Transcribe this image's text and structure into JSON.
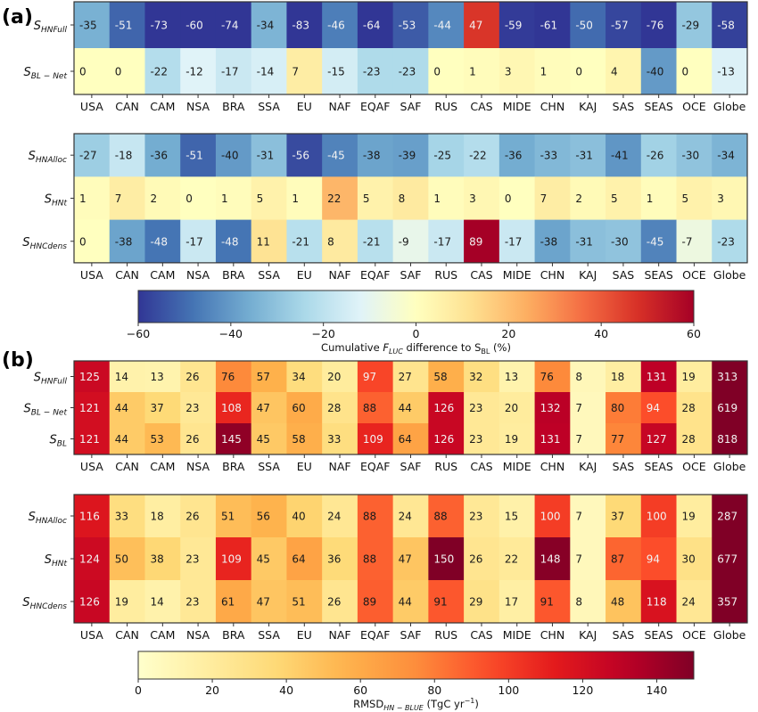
{
  "chart_data": [
    {
      "type": "heatmap",
      "panel": "(a)",
      "subplot": "top",
      "colormap": "RdYlBu_r",
      "vmin": -60,
      "vmax": 60,
      "categories": [
        "USA",
        "CAN",
        "CAM",
        "NSA",
        "BRA",
        "SSA",
        "EU",
        "NAF",
        "EQAF",
        "SAF",
        "RUS",
        "CAS",
        "MIDE",
        "CHN",
        "KAJ",
        "SAS",
        "SEAS",
        "OCE",
        "Globe"
      ],
      "rows": [
        {
          "label_main": "S",
          "label_sub": "HNFull",
          "values": [
            -35,
            -51,
            -73,
            -60,
            -74,
            -34,
            -83,
            -46,
            -64,
            -53,
            -44,
            47,
            -59,
            -61,
            -50,
            -57,
            -76,
            -29,
            -58
          ]
        },
        {
          "label_main": "S",
          "label_sub": "BL − Net",
          "values": [
            0,
            0,
            -22,
            -12,
            -17,
            -14,
            7,
            -15,
            -23,
            -23,
            0,
            1,
            3,
            1,
            0,
            4,
            -40,
            0,
            -13
          ]
        }
      ]
    },
    {
      "type": "heatmap",
      "panel": "(a)",
      "subplot": "bottom",
      "colormap": "RdYlBu_r",
      "vmin": -60,
      "vmax": 60,
      "categories": [
        "USA",
        "CAN",
        "CAM",
        "NSA",
        "BRA",
        "SSA",
        "EU",
        "NAF",
        "EQAF",
        "SAF",
        "RUS",
        "CAS",
        "MIDE",
        "CHN",
        "KAJ",
        "SAS",
        "SEAS",
        "OCE",
        "Globe"
      ],
      "rows": [
        {
          "label_main": "S",
          "label_sub": "HNAlloc",
          "values": [
            -27,
            -18,
            -36,
            -51,
            -40,
            -31,
            -56,
            -45,
            -38,
            -39,
            -25,
            -22,
            -36,
            -33,
            -31,
            -41,
            -26,
            -30,
            -34
          ]
        },
        {
          "label_main": "S",
          "label_sub": "HNt",
          "values": [
            1,
            7,
            2,
            0,
            1,
            5,
            1,
            22,
            5,
            8,
            1,
            3,
            0,
            7,
            2,
            5,
            1,
            5,
            3
          ]
        },
        {
          "label_main": "S",
          "label_sub": "HNCdens",
          "values": [
            0,
            -38,
            -48,
            -17,
            -48,
            11,
            -21,
            8,
            -21,
            -9,
            -17,
            89,
            -17,
            -38,
            -31,
            -30,
            -45,
            -7,
            -23
          ]
        }
      ],
      "colorbar": {
        "ticks": [
          -60,
          -40,
          -20,
          0,
          20,
          40,
          60
        ],
        "tick_labels": [
          "−60",
          "−40",
          "−20",
          "0",
          "20",
          "40",
          "60"
        ],
        "label_pre": "Cumulative ",
        "label_var": "F",
        "label_var_sub": "LUC",
        "label_mid": " difference to S",
        "label_mid_sub": "BL",
        "label_post": " (%)"
      }
    },
    {
      "type": "heatmap",
      "panel": "(b)",
      "subplot": "top",
      "colormap": "YlOrRd",
      "vmin": 0,
      "vmax": 150,
      "categories": [
        "USA",
        "CAN",
        "CAM",
        "NSA",
        "BRA",
        "SSA",
        "EU",
        "NAF",
        "EQAF",
        "SAF",
        "RUS",
        "CAS",
        "MIDE",
        "CHN",
        "KAJ",
        "SAS",
        "SEAS",
        "OCE",
        "Globe"
      ],
      "rows": [
        {
          "label_main": "S",
          "label_sub": "HNFull",
          "values": [
            125,
            14,
            13,
            26,
            76,
            57,
            34,
            20,
            97,
            27,
            58,
            32,
            13,
            76,
            8,
            18,
            131,
            19,
            313
          ]
        },
        {
          "label_main": "S",
          "label_sub": "BL − Net",
          "values": [
            121,
            44,
            37,
            23,
            108,
            47,
            60,
            28,
            88,
            44,
            126,
            23,
            20,
            132,
            7,
            80,
            94,
            28,
            619
          ]
        },
        {
          "label_main": "S",
          "label_sub": "BL",
          "values": [
            121,
            44,
            53,
            26,
            145,
            45,
            58,
            33,
            109,
            64,
            126,
            23,
            19,
            131,
            7,
            77,
            127,
            28,
            818
          ]
        }
      ]
    },
    {
      "type": "heatmap",
      "panel": "(b)",
      "subplot": "bottom",
      "colormap": "YlOrRd",
      "vmin": 0,
      "vmax": 150,
      "categories": [
        "USA",
        "CAN",
        "CAM",
        "NSA",
        "BRA",
        "SSA",
        "EU",
        "NAF",
        "EQAF",
        "SAF",
        "RUS",
        "CAS",
        "MIDE",
        "CHN",
        "KAJ",
        "SAS",
        "SEAS",
        "OCE",
        "Globe"
      ],
      "rows": [
        {
          "label_main": "S",
          "label_sub": "HNAlloc",
          "values": [
            116,
            33,
            18,
            26,
            51,
            56,
            40,
            24,
            88,
            24,
            88,
            23,
            15,
            100,
            7,
            37,
            100,
            19,
            287
          ]
        },
        {
          "label_main": "S",
          "label_sub": "HNt",
          "values": [
            124,
            50,
            38,
            23,
            109,
            45,
            64,
            36,
            88,
            47,
            150,
            26,
            22,
            148,
            7,
            87,
            94,
            30,
            677
          ]
        },
        {
          "label_main": "S",
          "label_sub": "HNCdens",
          "values": [
            126,
            19,
            14,
            23,
            61,
            47,
            51,
            26,
            89,
            44,
            91,
            29,
            17,
            91,
            8,
            48,
            118,
            24,
            357
          ]
        }
      ],
      "colorbar": {
        "ticks": [
          0,
          20,
          40,
          60,
          80,
          100,
          120,
          140
        ],
        "tick_labels": [
          "0",
          "20",
          "40",
          "60",
          "80",
          "100",
          "120",
          "140"
        ],
        "label_pre": "RMSD",
        "label_sub": "HN − BLUE",
        "label_post": " (TgC yr",
        "label_sup": "−1",
        "label_end": ")"
      }
    }
  ],
  "panel_labels": {
    "a": "(a)",
    "b": "(b)"
  }
}
